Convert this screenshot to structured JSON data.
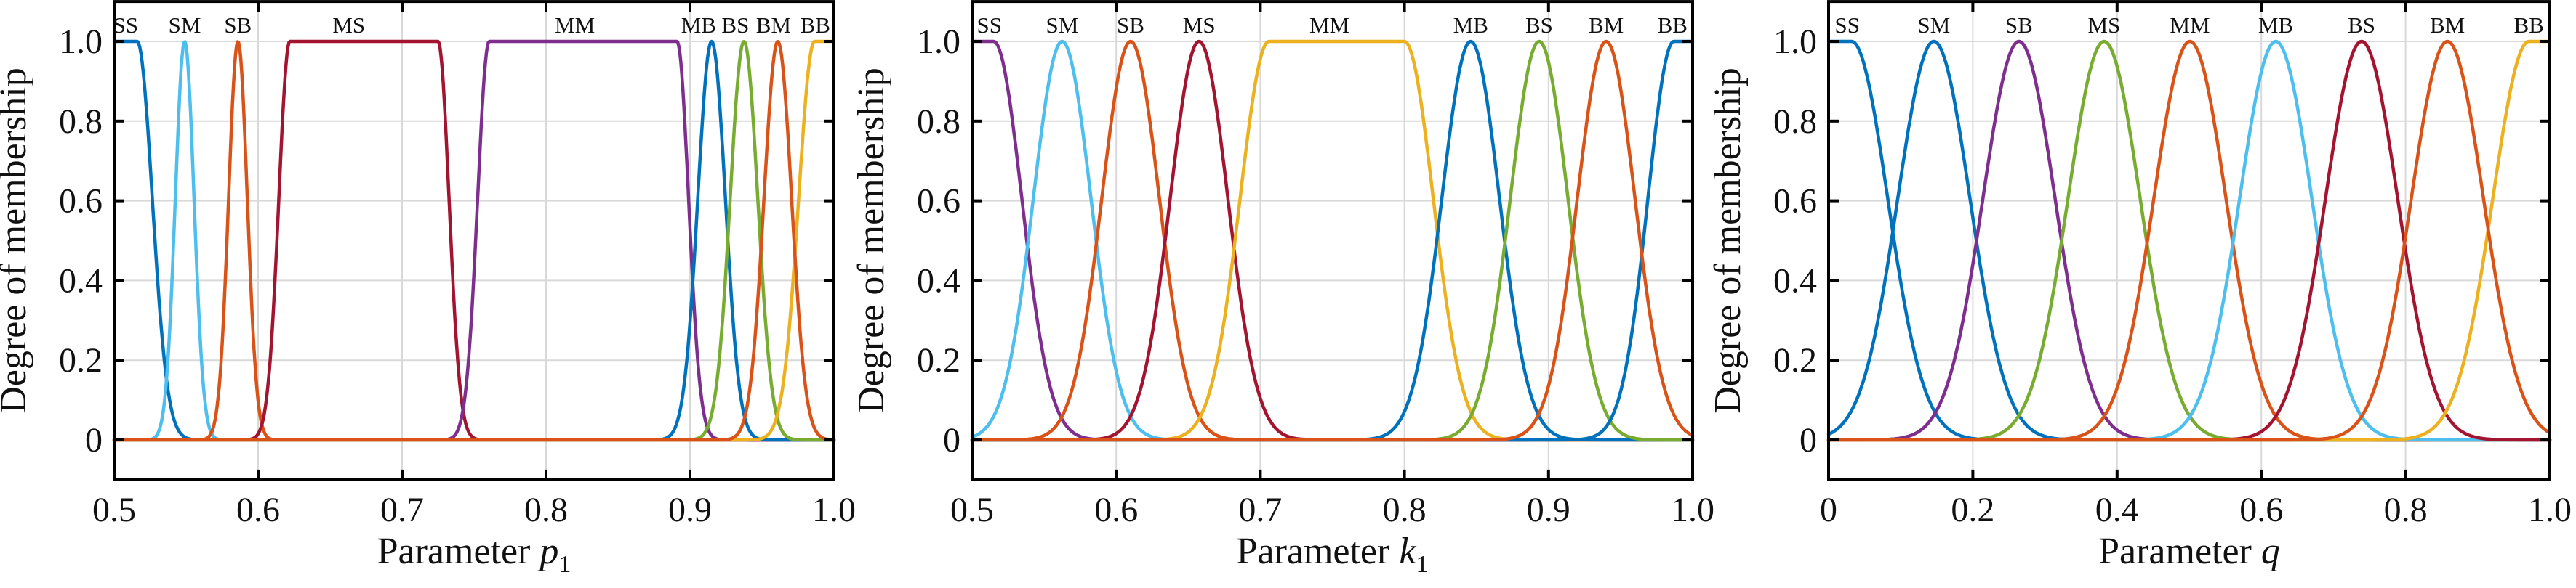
{
  "figure": {
    "background": "#ffffff",
    "grid_color": "#d9d9d9",
    "axis_color": "#000000",
    "text_color": "#111111",
    "palette": {
      "blue": "#0072BD",
      "orange": "#D95319",
      "yellow": "#EDB120",
      "purple": "#7E2F8E",
      "green": "#77AC30",
      "cyan": "#4DBEEE",
      "darkred": "#A2142F"
    }
  },
  "chart_data": [
    {
      "type": "line",
      "title": "",
      "xlabel": "Parameter p₁",
      "xlabel_parts": {
        "prefix": "Parameter",
        "var": "p",
        "sub": "1"
      },
      "ylabel": "Degree of membership",
      "xlim": [
        0.5,
        1.0
      ],
      "ylim": [
        -0.1,
        1.1
      ],
      "grid": true,
      "legend": "none",
      "x_ticks": [
        {
          "v": 0.5,
          "label": "0.5"
        },
        {
          "v": 0.6,
          "label": "0.6"
        },
        {
          "v": 0.7,
          "label": "0.7"
        },
        {
          "v": 0.8,
          "label": "0.8"
        },
        {
          "v": 0.9,
          "label": "0.9"
        },
        {
          "v": 1.0,
          "label": "1.0"
        }
      ],
      "y_ticks": [
        {
          "v": 0.0,
          "label": "0"
        },
        {
          "v": 0.2,
          "label": "0.2"
        },
        {
          "v": 0.4,
          "label": "0.4"
        },
        {
          "v": 0.6,
          "label": "0.6"
        },
        {
          "v": 0.8,
          "label": "0.8"
        },
        {
          "v": 1.0,
          "label": "1.0"
        }
      ],
      "series": [
        {
          "name": "SS",
          "color": "#0072BD",
          "shape": "zmf",
          "params": {
            "c": 0.516,
            "sigma": 0.0105
          },
          "label_x": 0.508
        },
        {
          "name": "SM",
          "color": "#4DBEEE",
          "shape": "gaussmf",
          "params": {
            "c": 0.549,
            "sigma": 0.0065
          },
          "label_x": 0.549
        },
        {
          "name": "SB",
          "color": "#D95319",
          "shape": "gaussmf",
          "params": {
            "c": 0.586,
            "sigma": 0.0065
          },
          "label_x": 0.586
        },
        {
          "name": "MS",
          "color": "#A2142F",
          "shape": "pimf",
          "params": {
            "c1": 0.622,
            "sigma1": 0.0076,
            "c2": 0.725,
            "sigma2": 0.0076
          },
          "label_x": 0.663
        },
        {
          "name": "MM",
          "color": "#7E2F8E",
          "shape": "pimf",
          "params": {
            "c1": 0.7605,
            "sigma1": 0.008,
            "c2": 0.891,
            "sigma2": 0.008
          },
          "label_x": 0.82
        },
        {
          "name": "MB",
          "color": "#0072BD",
          "shape": "gaussmf",
          "params": {
            "c": 0.915,
            "sigma": 0.0096
          },
          "label_x": 0.906
        },
        {
          "name": "BS",
          "color": "#77AC30",
          "shape": "gaussmf",
          "params": {
            "c": 0.9375,
            "sigma": 0.0096
          },
          "label_x": 0.9315
        },
        {
          "name": "BM",
          "color": "#D95319",
          "shape": "gaussmf",
          "params": {
            "c": 0.961,
            "sigma": 0.0096
          },
          "label_x": 0.958
        },
        {
          "name": "BB",
          "color": "#EDB120",
          "shape": "smf",
          "params": {
            "c": 0.9865,
            "sigma": 0.011
          },
          "label_x": 0.987
        }
      ]
    },
    {
      "type": "line",
      "title": "",
      "xlabel": "Parameter k₁",
      "xlabel_parts": {
        "prefix": "Parameter",
        "var": "k",
        "sub": "1"
      },
      "ylabel": "Degree of membership",
      "xlim": [
        0.5,
        1.0
      ],
      "ylim": [
        -0.1,
        1.1
      ],
      "grid": true,
      "legend": "none",
      "x_ticks": [
        {
          "v": 0.5,
          "label": "0.5"
        },
        {
          "v": 0.6,
          "label": "0.6"
        },
        {
          "v": 0.7,
          "label": "0.7"
        },
        {
          "v": 0.8,
          "label": "0.8"
        },
        {
          "v": 0.9,
          "label": "0.9"
        },
        {
          "v": 1.0,
          "label": "1.0"
        }
      ],
      "y_ticks": [
        {
          "v": 0.0,
          "label": "0"
        },
        {
          "v": 0.2,
          "label": "0.2"
        },
        {
          "v": 0.4,
          "label": "0.4"
        },
        {
          "v": 0.6,
          "label": "0.6"
        },
        {
          "v": 0.8,
          "label": "0.8"
        },
        {
          "v": 1.0,
          "label": "1.0"
        }
      ],
      "series": [
        {
          "name": "SS",
          "color": "#7E2F8E",
          "shape": "zmf",
          "params": {
            "c": 0.515,
            "sigma": 0.0195
          },
          "label_x": 0.512
        },
        {
          "name": "SM",
          "color": "#4DBEEE",
          "shape": "gaussmf",
          "params": {
            "c": 0.5625,
            "sigma": 0.02
          },
          "label_x": 0.5625
        },
        {
          "name": "SB",
          "color": "#D95319",
          "shape": "gaussmf",
          "params": {
            "c": 0.61,
            "sigma": 0.02
          },
          "label_x": 0.61
        },
        {
          "name": "MS",
          "color": "#A2142F",
          "shape": "gaussmf",
          "params": {
            "c": 0.6575,
            "sigma": 0.02
          },
          "label_x": 0.6575
        },
        {
          "name": "MM",
          "color": "#EDB120",
          "shape": "pimf",
          "params": {
            "c1": 0.706,
            "sigma1": 0.02,
            "c2": 0.8,
            "sigma2": 0.02
          },
          "label_x": 0.748
        },
        {
          "name": "MB",
          "color": "#0072BD",
          "shape": "gaussmf",
          "params": {
            "c": 0.846,
            "sigma": 0.02
          },
          "label_x": 0.846
        },
        {
          "name": "BS",
          "color": "#77AC30",
          "shape": "gaussmf",
          "params": {
            "c": 0.8935,
            "sigma": 0.02
          },
          "label_x": 0.8935
        },
        {
          "name": "BM",
          "color": "#D95319",
          "shape": "gaussmf",
          "params": {
            "c": 0.94,
            "sigma": 0.02
          },
          "label_x": 0.94
        },
        {
          "name": "BB",
          "color": "#0072BD",
          "shape": "smf",
          "params": {
            "c": 0.987,
            "sigma": 0.018
          },
          "label_x": 0.986
        }
      ]
    },
    {
      "type": "line",
      "title": "",
      "xlabel": "Parameter q",
      "xlabel_parts": {
        "prefix": "Parameter",
        "var": "q",
        "sub": ""
      },
      "ylabel": "Degree of membership",
      "xlim": [
        0.0,
        1.0
      ],
      "ylim": [
        -0.1,
        1.1
      ],
      "grid": true,
      "legend": "none",
      "x_ticks": [
        {
          "v": 0.0,
          "label": "0"
        },
        {
          "v": 0.2,
          "label": "0.2"
        },
        {
          "v": 0.4,
          "label": "0.4"
        },
        {
          "v": 0.6,
          "label": "0.6"
        },
        {
          "v": 0.8,
          "label": "0.8"
        },
        {
          "v": 1.0,
          "label": "1.0"
        }
      ],
      "y_ticks": [
        {
          "v": 0.0,
          "label": "0"
        },
        {
          "v": 0.2,
          "label": "0.2"
        },
        {
          "v": 0.4,
          "label": "0.4"
        },
        {
          "v": 0.6,
          "label": "0.6"
        },
        {
          "v": 0.8,
          "label": "0.8"
        },
        {
          "v": 1.0,
          "label": "1.0"
        }
      ],
      "series": [
        {
          "name": "SS",
          "color": "#0072BD",
          "shape": "zmf",
          "params": {
            "c": 0.032,
            "sigma": 0.05
          },
          "label_x": 0.026
        },
        {
          "name": "SM",
          "color": "#0072BD",
          "shape": "gaussmf",
          "params": {
            "c": 0.146,
            "sigma": 0.05
          },
          "label_x": 0.146
        },
        {
          "name": "SB",
          "color": "#7E2F8E",
          "shape": "gaussmf",
          "params": {
            "c": 0.264,
            "sigma": 0.05
          },
          "label_x": 0.264
        },
        {
          "name": "MS",
          "color": "#77AC30",
          "shape": "gaussmf",
          "params": {
            "c": 0.382,
            "sigma": 0.05
          },
          "label_x": 0.382
        },
        {
          "name": "MM",
          "color": "#D95319",
          "shape": "gaussmf",
          "params": {
            "c": 0.501,
            "sigma": 0.05
          },
          "label_x": 0.501
        },
        {
          "name": "MB",
          "color": "#4DBEEE",
          "shape": "gaussmf",
          "params": {
            "c": 0.62,
            "sigma": 0.05
          },
          "label_x": 0.62
        },
        {
          "name": "BS",
          "color": "#A2142F",
          "shape": "gaussmf",
          "params": {
            "c": 0.739,
            "sigma": 0.05
          },
          "label_x": 0.739
        },
        {
          "name": "BM",
          "color": "#D95319",
          "shape": "gaussmf",
          "params": {
            "c": 0.858,
            "sigma": 0.05
          },
          "label_x": 0.858
        },
        {
          "name": "BB",
          "color": "#EDB120",
          "shape": "smf",
          "params": {
            "c": 0.971,
            "sigma": 0.05
          },
          "label_x": 0.971
        }
      ]
    }
  ]
}
